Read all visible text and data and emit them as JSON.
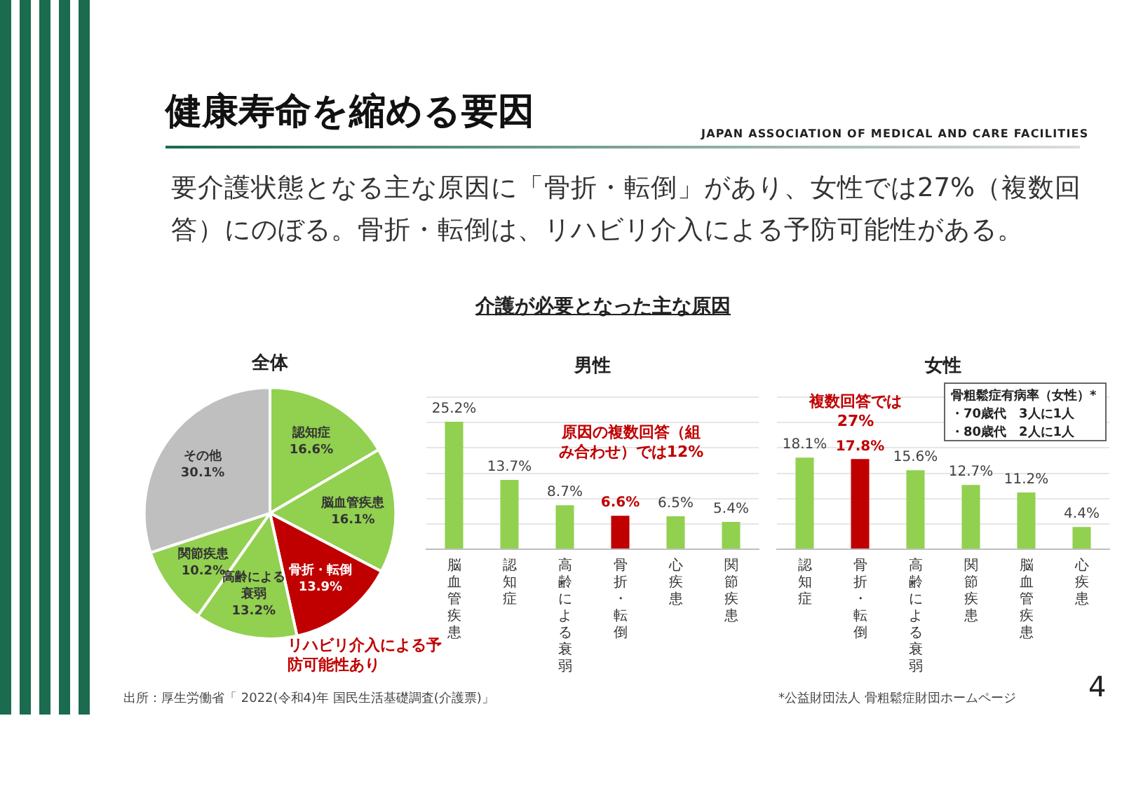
{
  "chart_data": [
    {
      "type": "other",
      "title": "健康寿命を縮める要因",
      "subtitle": "要介護状態となる主な原因に「骨折・転倒」があり、女性では27%（複数回答）にのぼる。骨折・転倒は、リハビリ介入による予防可能性がある。",
      "annotations": [
        "JAPAN ASSOCIATION OF MEDICAL AND CARE FACILITIES",
        "介護が必要となった主な原因",
        "出所：厚生労働省「 2022(令和4)年 国民生活基礎調査(介護票)」",
        "*公益財団法人 骨粗鬆症財団ホームページ",
        "4"
      ]
    },
    {
      "type": "pie",
      "title": "全体",
      "categories": [
        "認知症",
        "脳血管疾患",
        "骨折・転倒",
        "高齢による衰弱",
        "関節疾患",
        "その他"
      ],
      "values": [
        16.6,
        16.1,
        13.9,
        13.2,
        10.2,
        30.1
      ],
      "value_labels": [
        "16.6%",
        "16.1%",
        "13.9%",
        "13.2%",
        "10.2%",
        "30.1%"
      ],
      "colors": [
        "#92d050",
        "#92d050",
        "#c00000",
        "#92d050",
        "#92d050",
        "#bfbfbf"
      ],
      "annotations": [
        "リハビリ介入による予防可能性あり"
      ]
    },
    {
      "type": "bar",
      "title": "男性",
      "categories": [
        "脳血管疾患",
        "認知症",
        "高齢による衰弱",
        "骨折・転倒",
        "心疾患",
        "関節疾患"
      ],
      "values": [
        25.2,
        13.7,
        8.7,
        6.6,
        6.5,
        5.4
      ],
      "value_labels": [
        "25.2%",
        "13.7%",
        "8.7%",
        "6.6%",
        "6.5%",
        "5.4%"
      ],
      "colors": [
        "#92d050",
        "#92d050",
        "#92d050",
        "#c00000",
        "#92d050",
        "#92d050"
      ],
      "ylim": [
        0,
        30
      ],
      "yticks": [
        {
          "value": 0,
          "label": null
        },
        {
          "value": 5,
          "label": null
        },
        {
          "value": 10,
          "label": null
        },
        {
          "value": 15,
          "label": null
        },
        {
          "value": 20,
          "label": null
        },
        {
          "value": 25,
          "label": null
        },
        {
          "value": 30,
          "label": null
        }
      ],
      "grid": "y",
      "tick_labels": "x",
      "annotations": [
        "原因の複数回答（組み合わせ）では12%"
      ]
    },
    {
      "type": "bar",
      "title": "女性",
      "categories": [
        "認知症",
        "骨折・転倒",
        "高齢による衰弱",
        "関節疾患",
        "脳血管疾患",
        "心疾患"
      ],
      "values": [
        18.1,
        17.8,
        15.6,
        12.7,
        11.2,
        4.4
      ],
      "value_labels": [
        "18.1%",
        "17.8%",
        "15.6%",
        "12.7%",
        "11.2%",
        "4.4%"
      ],
      "colors": [
        "#92d050",
        "#c00000",
        "#92d050",
        "#92d050",
        "#92d050",
        "#92d050"
      ],
      "ylim": [
        0,
        30
      ],
      "yticks": [
        {
          "value": 0,
          "label": null
        },
        {
          "value": 5,
          "label": null
        },
        {
          "value": 10,
          "label": null
        },
        {
          "value": 15,
          "label": null
        },
        {
          "value": 20,
          "label": null
        },
        {
          "value": 25,
          "label": null
        },
        {
          "value": 30,
          "label": null
        }
      ],
      "grid": "y",
      "tick_labels": "x",
      "annotations": [
        "複数回答では27%",
        "骨粗鬆症有病率（女性）*",
        "・70歳代　3人に1人",
        "・80歳代　2人に1人"
      ]
    }
  ]
}
